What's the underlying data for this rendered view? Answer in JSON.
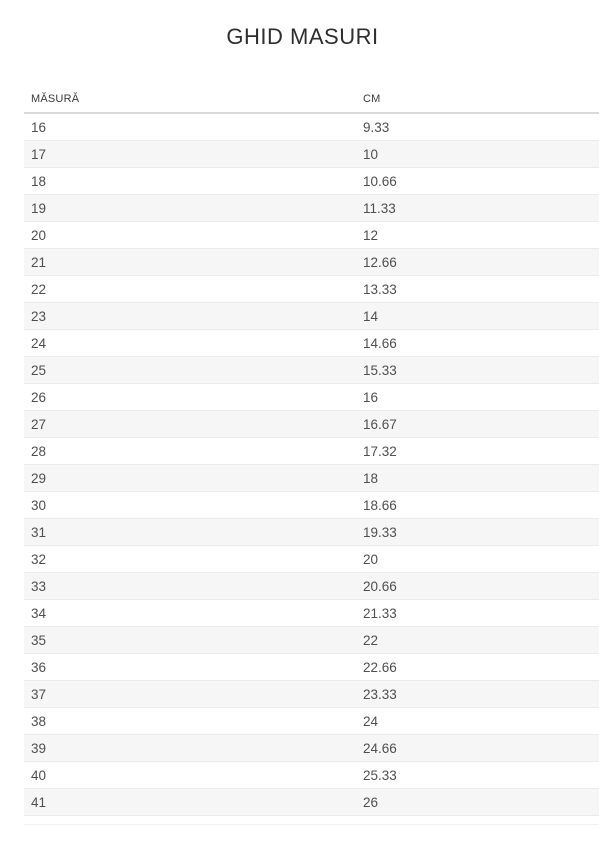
{
  "title": "GHID MASURI",
  "table": {
    "columns": [
      "MĂSURĂ",
      "CM"
    ],
    "rows": [
      [
        "16",
        "9.33"
      ],
      [
        "17",
        "10"
      ],
      [
        "18",
        "10.66"
      ],
      [
        "19",
        "11.33"
      ],
      [
        "20",
        "12"
      ],
      [
        "21",
        "12.66"
      ],
      [
        "22",
        "13.33"
      ],
      [
        "23",
        "14"
      ],
      [
        "24",
        "14.66"
      ],
      [
        "25",
        "15.33"
      ],
      [
        "26",
        "16"
      ],
      [
        "27",
        "16.67"
      ],
      [
        "28",
        "17.32"
      ],
      [
        "29",
        "18"
      ],
      [
        "30",
        "18.66"
      ],
      [
        "31",
        "19.33"
      ],
      [
        "32",
        "20"
      ],
      [
        "33",
        "20.66"
      ],
      [
        "34",
        "21.33"
      ],
      [
        "35",
        "22"
      ],
      [
        "36",
        "22.66"
      ],
      [
        "37",
        "23.33"
      ],
      [
        "38",
        "24"
      ],
      [
        "39",
        "24.66"
      ],
      [
        "40",
        "25.33"
      ],
      [
        "41",
        "26"
      ]
    ]
  },
  "colors": {
    "bg": "#ffffff",
    "title_color": "#2e2e2e",
    "header_text": "#3b3b3b",
    "header_border": "#dadada",
    "cell_text": "#4f4f4f",
    "row_border": "#ebebeb",
    "zebra": "#f6f6f6",
    "end_line": "#f0f0f0"
  }
}
